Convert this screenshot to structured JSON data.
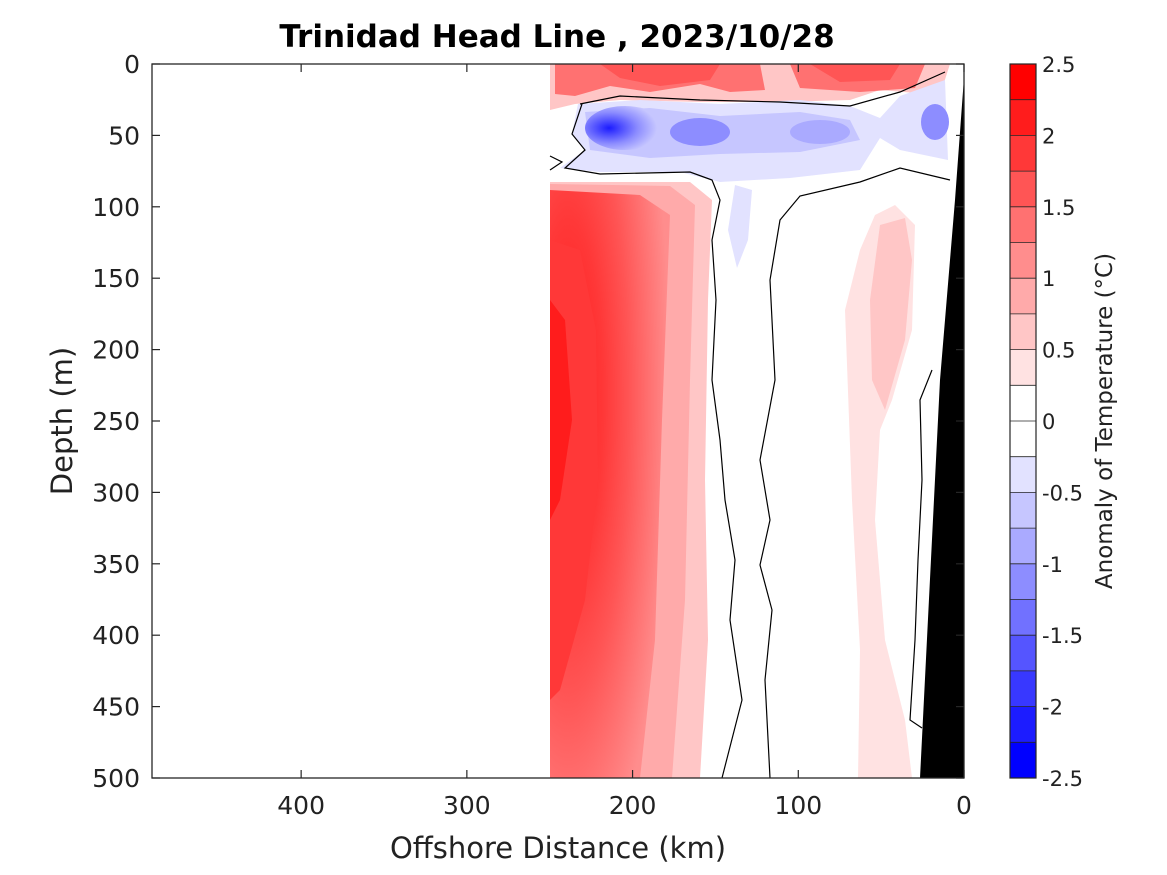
{
  "chart_data": {
    "type": "heatmap",
    "title": "Trinidad Head Line , 2023/10/28",
    "xlabel": "Offshore Distance (km)",
    "ylabel": "Depth (m)",
    "xlim": [
      490,
      0
    ],
    "ylim": [
      0,
      500
    ],
    "x_ticks": [
      400,
      300,
      200,
      100,
      0
    ],
    "y_ticks": [
      0,
      50,
      100,
      150,
      200,
      250,
      300,
      350,
      400,
      450,
      500
    ],
    "grid": false,
    "x_reversed": true,
    "y_reversed": true,
    "data_extent_km": [
      0,
      250
    ],
    "colorbar": {
      "label": "Anomaly of Temperature (°C)",
      "range": [
        -2.5,
        2.5
      ],
      "tick_values": [
        2.5,
        2,
        1.5,
        1,
        0.5,
        0,
        -0.5,
        -1,
        -1.5,
        -2,
        -2.5
      ],
      "tick_labels": [
        "2.5",
        "2",
        "1.5",
        "1",
        "0.5",
        "0",
        "-0.5",
        "-1",
        "-1.5",
        "-2",
        "-2.5"
      ],
      "levels": [
        {
          "value": 2.25,
          "color": "#ff0000"
        },
        {
          "value": 2.0,
          "color": "#ff1c1c"
        },
        {
          "value": 1.75,
          "color": "#ff3838"
        },
        {
          "value": 1.5,
          "color": "#ff5555"
        },
        {
          "value": 1.25,
          "color": "#ff7171"
        },
        {
          "value": 1.0,
          "color": "#ff8d8d"
        },
        {
          "value": 0.75,
          "color": "#ffaaaa"
        },
        {
          "value": 0.5,
          "color": "#ffc6c6"
        },
        {
          "value": 0.25,
          "color": "#ffe2e2"
        },
        {
          "value": 0.1,
          "color": "#ffffff"
        },
        {
          "value": -0.1,
          "color": "#ffffff"
        },
        {
          "value": -0.25,
          "color": "#e2e2ff"
        },
        {
          "value": -0.5,
          "color": "#c6c6ff"
        },
        {
          "value": -0.75,
          "color": "#aaaaff"
        },
        {
          "value": -1.0,
          "color": "#8d8dff"
        },
        {
          "value": -1.25,
          "color": "#7171ff"
        },
        {
          "value": -1.5,
          "color": "#5555ff"
        },
        {
          "value": -1.75,
          "color": "#3838ff"
        },
        {
          "value": -2.0,
          "color": "#1c1cff"
        },
        {
          "value": -2.25,
          "color": "#0000ff"
        }
      ]
    },
    "features": [
      {
        "name": "warm surface layer",
        "x_range": [
          250,
          0
        ],
        "depth_range": [
          0,
          25
        ],
        "anomaly": 1.5
      },
      {
        "name": "cold subsurface band",
        "x_range": [
          250,
          0
        ],
        "depth_range": [
          30,
          70
        ],
        "anomaly": -1.5
      },
      {
        "name": "warm offshore core",
        "x_range": [
          250,
          190
        ],
        "depth_range": [
          100,
          500
        ],
        "anomaly": 2.0
      },
      {
        "name": "near-zero central column",
        "x_range": [
          170,
          80
        ],
        "depth_range": [
          100,
          500
        ],
        "anomaly": 0.0
      },
      {
        "name": "weak warm nearshore",
        "x_range": [
          80,
          30
        ],
        "depth_range": [
          100,
          500
        ],
        "anomaly": 0.5
      },
      {
        "name": "seafloor",
        "x_range": [
          25,
          0
        ],
        "depth_range": [
          0,
          500
        ],
        "color": "#000000"
      }
    ]
  }
}
